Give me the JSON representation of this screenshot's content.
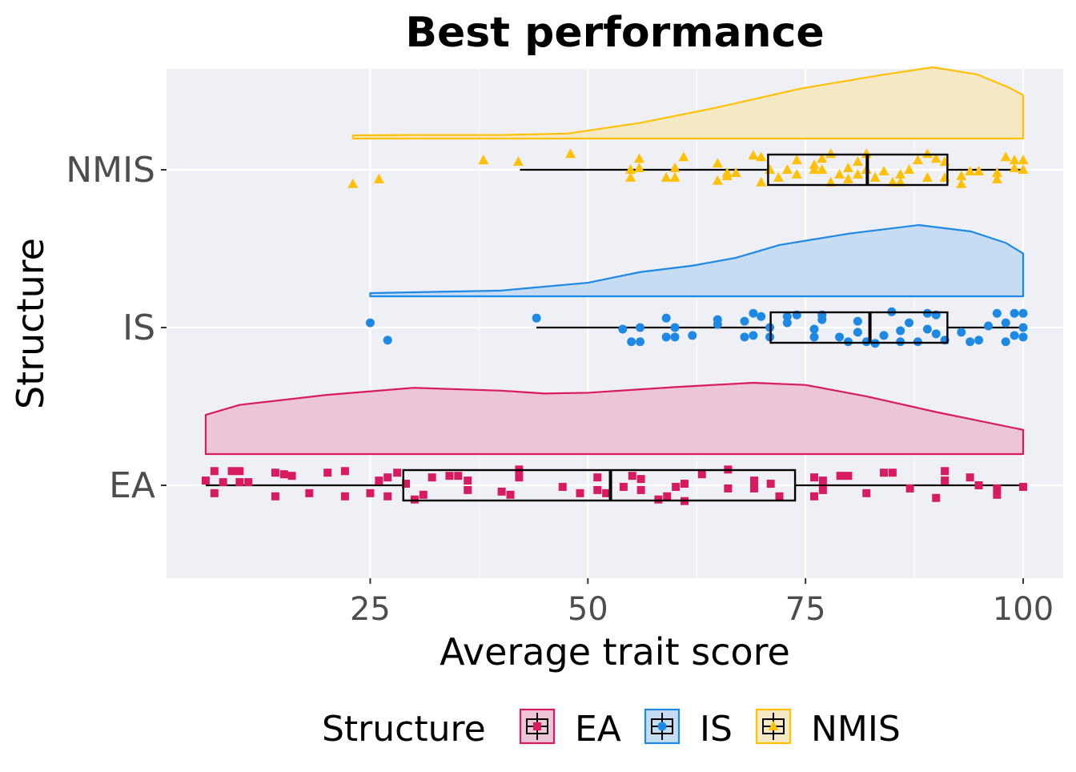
{
  "chart_data": {
    "type": "raincloud",
    "title": "Best performance",
    "xlabel": "Average trait score",
    "ylabel": "Structure",
    "xlim": [
      1.6,
      104.6
    ],
    "xticks": [
      25,
      50,
      75,
      100
    ],
    "xtick_labels": [
      "25",
      "50",
      "75",
      "100"
    ],
    "categories": [
      "EA",
      "IS",
      "NMIS"
    ],
    "legend": {
      "title": "Structure",
      "position": "bottom",
      "entries": [
        "EA",
        "IS",
        "NMIS"
      ]
    },
    "grid": true,
    "series": [
      {
        "name": "EA",
        "color": "#D81B60",
        "fill": "#ECC6D7",
        "shape": "square",
        "box": {
          "whisker_low": 6.1,
          "q1": 28.8,
          "median": 52.6,
          "q3": 73.8,
          "whisker_high": 100
        },
        "density": [
          [
            6.1,
            0.55
          ],
          [
            10,
            0.69
          ],
          [
            20,
            0.83
          ],
          [
            30,
            0.93
          ],
          [
            40,
            0.89
          ],
          [
            45,
            0.85
          ],
          [
            50,
            0.86
          ],
          [
            60,
            0.94
          ],
          [
            69,
            1.0
          ],
          [
            75,
            0.97
          ],
          [
            82,
            0.81
          ],
          [
            90,
            0.59
          ],
          [
            100,
            0.34
          ]
        ],
        "points": [
          [
            6.1,
            -0.03
          ],
          [
            7.1,
            -0.09
          ],
          [
            7.1,
            0.05
          ],
          [
            8.1,
            -0.02
          ],
          [
            9.1,
            -0.09
          ],
          [
            10.0,
            -0.09
          ],
          [
            10.0,
            -0.02
          ],
          [
            11.0,
            -0.02
          ],
          [
            14.1,
            -0.08
          ],
          [
            14.1,
            0.07
          ],
          [
            15.1,
            -0.07
          ],
          [
            16.0,
            -0.06
          ],
          [
            18.0,
            0.05
          ],
          [
            20.1,
            -0.08
          ],
          [
            22.1,
            -0.09
          ],
          [
            22.1,
            0.07
          ],
          [
            25.0,
            0.05
          ],
          [
            26.0,
            -0.03
          ],
          [
            27.0,
            -0.05
          ],
          [
            27.0,
            0.07
          ],
          [
            28.1,
            -0.08
          ],
          [
            29.1,
            -0.01
          ],
          [
            30.1,
            0.09
          ],
          [
            31.1,
            0.06
          ],
          [
            32.1,
            -0.05
          ],
          [
            34.1,
            -0.06
          ],
          [
            35.1,
            -0.06
          ],
          [
            36.2,
            -0.03
          ],
          [
            36.2,
            0.03
          ],
          [
            40.1,
            0.04
          ],
          [
            41.1,
            0.06
          ],
          [
            42.1,
            -0.1
          ],
          [
            42.1,
            -0.05
          ],
          [
            47.1,
            0.01
          ],
          [
            49.1,
            0.05
          ],
          [
            51.1,
            -0.05
          ],
          [
            51.1,
            0.03
          ],
          [
            52.1,
            0.05
          ],
          [
            54.1,
            0.01
          ],
          [
            55.1,
            -0.06
          ],
          [
            56.1,
            -0.04
          ],
          [
            56.1,
            0.03
          ],
          [
            58.1,
            0.09
          ],
          [
            59.1,
            0.07
          ],
          [
            60.1,
            0.01
          ],
          [
            61.1,
            -0.01
          ],
          [
            61.1,
            0.1
          ],
          [
            63.1,
            -0.07
          ],
          [
            66.1,
            -0.1
          ],
          [
            66.1,
            0.02
          ],
          [
            69.1,
            -0.03
          ],
          [
            69.1,
            0.02
          ],
          [
            71.0,
            -0.01
          ],
          [
            72.0,
            0.07
          ],
          [
            76.0,
            -0.05
          ],
          [
            76.0,
            0.07
          ],
          [
            77.0,
            -0.03
          ],
          [
            77.0,
            0.03
          ],
          [
            79.0,
            -0.06
          ],
          [
            79.9,
            -0.06
          ],
          [
            82.0,
            0.05
          ],
          [
            84.0,
            -0.08
          ],
          [
            85.0,
            -0.08
          ],
          [
            87.0,
            0.02
          ],
          [
            90.0,
            0.08
          ],
          [
            91.0,
            -0.09
          ],
          [
            91.0,
            -0.03
          ],
          [
            93.9,
            -0.05
          ],
          [
            94.9,
            0.0
          ],
          [
            97.0,
            0.02
          ],
          [
            97.0,
            0.06
          ],
          [
            100,
            0.01
          ]
        ]
      },
      {
        "name": "IS",
        "color": "#1E88E5",
        "fill": "#C6DCF2",
        "shape": "circle",
        "box": {
          "whisker_low": 44.1,
          "q1": 71.0,
          "median": 82.4,
          "q3": 91.3,
          "whisker_high": 100
        },
        "density": [
          [
            25,
            0.045
          ],
          [
            40,
            0.08
          ],
          [
            50,
            0.19
          ],
          [
            56,
            0.34
          ],
          [
            62,
            0.43
          ],
          [
            67,
            0.54
          ],
          [
            72,
            0.72
          ],
          [
            80,
            0.88
          ],
          [
            88,
            1.0
          ],
          [
            94,
            0.91
          ],
          [
            98,
            0.75
          ],
          [
            100,
            0.6
          ]
        ],
        "points": [
          [
            25.0,
            -0.03
          ],
          [
            27.0,
            0.08
          ],
          [
            44.1,
            -0.06
          ],
          [
            54.0,
            0.01
          ],
          [
            55.0,
            0.09
          ],
          [
            56.0,
            0.0
          ],
          [
            56.0,
            0.09
          ],
          [
            59.0,
            -0.06
          ],
          [
            59.0,
            0.06
          ],
          [
            60.0,
            0.0
          ],
          [
            60.0,
            0.06
          ],
          [
            62.0,
            0.05
          ],
          [
            64.9,
            -0.05
          ],
          [
            64.9,
            -0.02
          ],
          [
            68.0,
            0.06
          ],
          [
            68.0,
            -0.04
          ],
          [
            69.0,
            -0.09
          ],
          [
            69.0,
            0.05
          ],
          [
            69.9,
            -0.07
          ],
          [
            70.9,
            0.0
          ],
          [
            70.9,
            0.06
          ],
          [
            72.9,
            -0.07
          ],
          [
            72.9,
            -0.03
          ],
          [
            74.0,
            -0.08
          ],
          [
            76.0,
            0.01
          ],
          [
            76.0,
            0.06
          ],
          [
            76.9,
            -0.08
          ],
          [
            76.9,
            -0.05
          ],
          [
            78.9,
            0.06
          ],
          [
            79.9,
            0.09
          ],
          [
            81.0,
            0.03
          ],
          [
            81.0,
            -0.04
          ],
          [
            82.0,
            0.09
          ],
          [
            83.0,
            0.1
          ],
          [
            84.0,
            0.05
          ],
          [
            84.9,
            -0.1
          ],
          [
            85.9,
            0.02
          ],
          [
            85.9,
            0.09
          ],
          [
            86.9,
            -0.03
          ],
          [
            87.9,
            0.09
          ],
          [
            89.0,
            -0.09
          ],
          [
            89.0,
            0.01
          ],
          [
            90.0,
            -0.08
          ],
          [
            90.0,
            0.04
          ],
          [
            91.0,
            0.08
          ],
          [
            92.9,
            0.03
          ],
          [
            93.9,
            0.09
          ],
          [
            94.9,
            0.08
          ],
          [
            96.0,
            -0.01
          ],
          [
            97.0,
            -0.09
          ],
          [
            98.0,
            -0.03
          ],
          [
            98.0,
            0.09
          ],
          [
            99.0,
            -0.09
          ],
          [
            99.0,
            0.05
          ],
          [
            100,
            -0.09
          ],
          [
            100,
            0.0
          ],
          [
            100,
            0.06
          ]
        ]
      },
      {
        "name": "NMIS",
        "color": "#FFC107",
        "fill": "#F5E8C4",
        "shape": "triangle",
        "box": {
          "whisker_low": 42.2,
          "q1": 70.7,
          "median": 82.1,
          "q3": 91.3,
          "whisker_high": 100
        },
        "density": [
          [
            23,
            0.045
          ],
          [
            30,
            0.05
          ],
          [
            40,
            0.05
          ],
          [
            47.7,
            0.07
          ],
          [
            56,
            0.22
          ],
          [
            65,
            0.44
          ],
          [
            74.4,
            0.7
          ],
          [
            83.6,
            0.89
          ],
          [
            89.6,
            1.0
          ],
          [
            94.7,
            0.9
          ],
          [
            98.3,
            0.72
          ],
          [
            100,
            0.61
          ]
        ],
        "points": [
          [
            23.0,
            0.09
          ],
          [
            26.0,
            0.06
          ],
          [
            38.0,
            -0.06
          ],
          [
            42.0,
            -0.05
          ],
          [
            48.0,
            -0.1
          ],
          [
            54.9,
            0.0
          ],
          [
            54.9,
            0.05
          ],
          [
            55.9,
            -0.07
          ],
          [
            55.9,
            -0.01
          ],
          [
            59.0,
            0.05
          ],
          [
            60.0,
            -0.01
          ],
          [
            60.0,
            0.05
          ],
          [
            61.0,
            -0.08
          ],
          [
            64.9,
            -0.04
          ],
          [
            64.9,
            0.07
          ],
          [
            66.0,
            0.02
          ],
          [
            66.0,
            0.04
          ],
          [
            67.0,
            0.02
          ],
          [
            69.0,
            -0.09
          ],
          [
            69.9,
            -0.08
          ],
          [
            69.9,
            0.08
          ],
          [
            70.9,
            0.0
          ],
          [
            71.9,
            0.05
          ],
          [
            72.9,
            0.0
          ],
          [
            74.0,
            0.03
          ],
          [
            74.0,
            -0.06
          ],
          [
            76.0,
            -0.03
          ],
          [
            76.0,
            0.0
          ],
          [
            76.9,
            -0.07
          ],
          [
            76.9,
            0.0
          ],
          [
            77.9,
            -0.1
          ],
          [
            77.9,
            0.08
          ],
          [
            78.9,
            0.03
          ],
          [
            79.9,
            -0.01
          ],
          [
            79.9,
            0.06
          ],
          [
            81.0,
            0.03
          ],
          [
            81.0,
            -0.05
          ],
          [
            82.0,
            0.0
          ],
          [
            82.0,
            -0.1
          ],
          [
            83.0,
            0.05
          ],
          [
            84.0,
            0.01
          ],
          [
            85.0,
            0.08
          ],
          [
            85.9,
            0.03
          ],
          [
            85.9,
            0.08
          ],
          [
            86.9,
            0.0
          ],
          [
            87.9,
            -0.06
          ],
          [
            89.0,
            -0.1
          ],
          [
            89.0,
            0.05
          ],
          [
            90.0,
            -0.07
          ],
          [
            91.0,
            -0.05
          ],
          [
            91.0,
            0.05
          ],
          [
            92.9,
            0.04
          ],
          [
            92.9,
            0.09
          ],
          [
            93.9,
            0.01
          ],
          [
            94.9,
            0.01
          ],
          [
            97.0,
            0.06
          ],
          [
            98.0,
            -0.08
          ],
          [
            99.0,
            -0.01
          ],
          [
            99.0,
            -0.06
          ],
          [
            100,
            0.0
          ],
          [
            100,
            -0.06
          ],
          [
            97.0,
            0.02
          ]
        ]
      }
    ]
  }
}
